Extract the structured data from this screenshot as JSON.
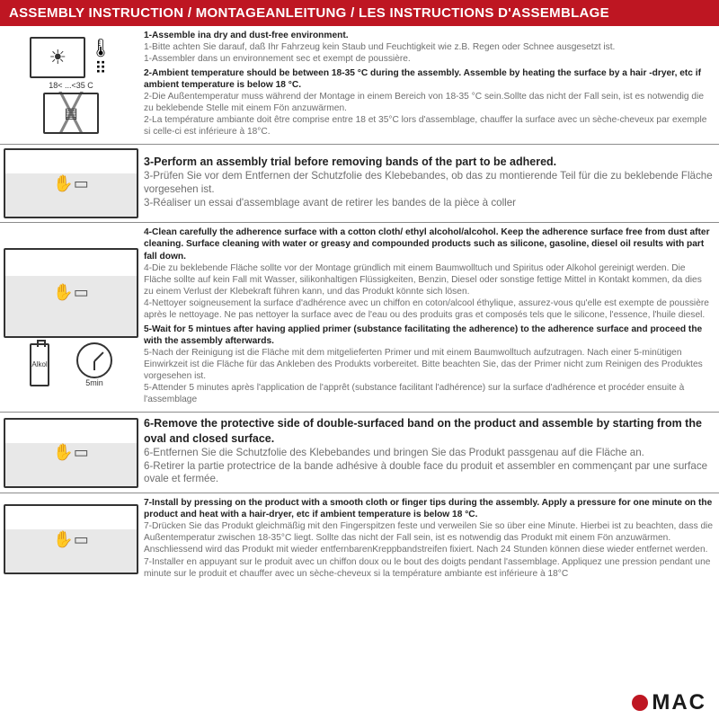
{
  "colors": {
    "accent": "#be1622",
    "text_bold": "#222222",
    "text_grey": "#6e6e6e",
    "border": "#8c8c8c"
  },
  "title": "ASSEMBLY INSTRUCTION / MONTAGEANLEITUNG / LES INSTRUCTIONS D'ASSEMBLAGE",
  "temp_range": "18<  ...<35 C",
  "bottle_label": "Alkol",
  "clock_label": "5min",
  "logo_text": "MAC",
  "step1": {
    "en": "1-Assemble ina dry and dust-free environment.",
    "de": "1-Bitte achten Sie darauf, daß Ihr Fahrzeug kein Staub und Feuchtigkeit wie z.B. Regen oder Schnee ausgesetzt ist.",
    "fr": "1-Assembler dans un environnement sec et exempt de poussière."
  },
  "step2": {
    "en": "2-Ambient temperature should be between 18-35 °C  during the assembly. Assemble by heating the surface by a hair -dryer, etc if ambient temperature is below 18 °C.",
    "de": "2-Die Außentemperatur muss während der Montage in einem Bereich von 18-35 °C  sein.Sollte das nicht der Fall sein, ist es notwendig die zu beklebende Stelle mit einem Fön anzuwärmen.",
    "fr": "2-La température ambiante doit être comprise entre 18 et 35°C lors d'assemblage, chauffer la surface avec un sèche-cheveux par exemple si celle-ci est inférieure à 18°C."
  },
  "step3": {
    "en": "3-Perform an assembly trial before removing bands of the part to be adhered.",
    "de": "3-Prüfen Sie vor dem Entfernen der Schutzfolie des Klebebandes, ob das zu montierende Teil für die zu beklebende Fläche vorgesehen ist.",
    "fr": "3-Réaliser un essai d'assemblage avant de retirer les bandes de la pièce à coller"
  },
  "step4": {
    "en": "4-Clean carefully the adherence surface with a cotton cloth/ ethyl alcohol/alcohol. Keep the adherence surface free from dust after cleaning. Surface cleaning with water or greasy and compounded products such as silicone, gasoline, diesel oil results with part fall down.",
    "de": "4-Die zu beklebende Fläche sollte vor der Montage gründlich mit einem Baumwolltuch und Spiritus oder Alkohol gereinigt werden. Die Fläche sollte auf kein Fall mit Wasser, silikonhaltigen Flüssigkeiten, Benzin, Diesel oder sonstige fettige Mittel in Kontakt kommen, da dies zu einem Verlust der Klebekraft führen kann, und das Produkt könnte sich lösen.",
    "fr": "4-Nettoyer soigneusement la surface d'adhérence avec un chiffon en coton/alcool éthylique, assurez-vous qu'elle est exempte de poussière après le nettoyage. Ne pas nettoyer la surface avec de l'eau ou des produits gras et composés tels que le silicone, l'essence, l'huile diesel."
  },
  "step5": {
    "en": "5-Wait for 5 mintues after having applied primer (substance facilitating the adherence) to the adherence surface and proceed the with the assembly afterwards.",
    "de": "5-Nach der Reinigung ist die Fläche mit dem mitgelieferten Primer und mit einem Baumwolltuch aufzutragen. Nach einer 5-minütigen Einwirkzeit ist die Fläche für das Ankleben des Produkts vorbereitet. Bitte beachten Sie, das der Primer nicht zum Reinigen des Produktes vorgesehen ist.",
    "fr": "5-Attender 5 minutes après l'application de l'apprêt (substance facilitant l'adhérence) sur la surface d'adhérence et procéder ensuite à l'assemblage"
  },
  "step6": {
    "en": "6-Remove the protective side of double-surfaced band on the product and assemble by starting from the oval and closed surface.",
    "de": "6-Entfernen Sie die Schutzfolie des Klebebandes und bringen Sie das Produkt passgenau auf die Fläche an.",
    "fr": "6-Retirer la partie protectrice de la bande adhésive à double face du produit et assembler en commençant par une surface ovale et fermée."
  },
  "step7": {
    "en": "7-Install by pressing on the product with a smooth cloth or finger tips during the assembly. Apply a pressure for one minute on the product and heat with a hair-dryer, etc if ambient temperature is below 18 °C.",
    "de": "7-Drücken Sie das Produkt gleichmäßig mit den Fingerspitzen feste und verweilen Sie so über eine Minute. Hierbei ist zu beachten, dass die Außentemperatur zwischen 18-35°C liegt. Sollte das nicht der Fall sein, ist es notwendig das Produkt mit einem Fön anzuwärmen. Anschliessend wird das Produkt mit wieder entfernbarenKreppbandstreifen fixiert. Nach 24 Stunden können diese wieder entfernet werden.",
    "fr": "7-Installer en appuyant sur le produit avec un chiffon doux ou le bout des doigts pendant l'assemblage. Appliquez une pression pendant une minute sur le produit et chauffer avec un sèche-cheveux si la température ambiante est inférieure à 18°C"
  }
}
